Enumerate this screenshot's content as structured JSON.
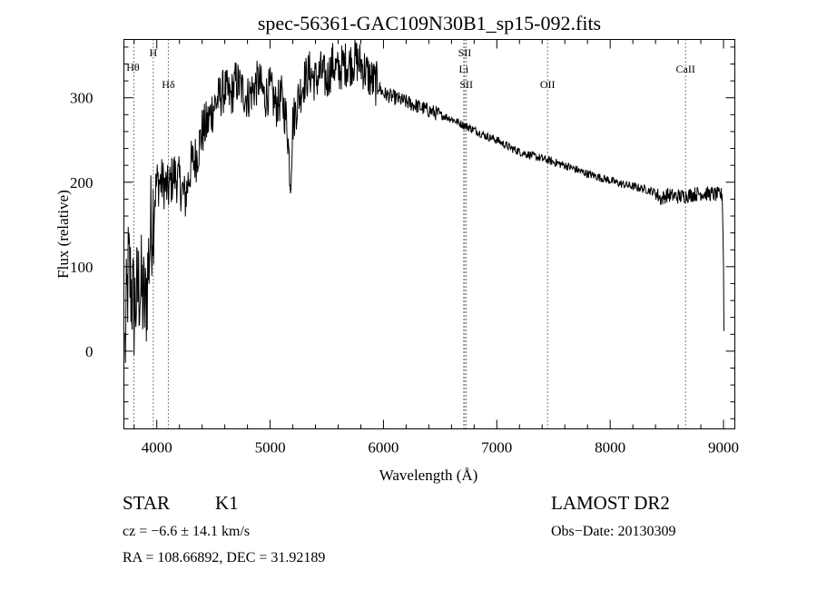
{
  "chart_data": {
    "type": "line",
    "title": "spec-56361-GAC109N30B1_sp15-092.fits",
    "xlabel": "Wavelength (Å)",
    "ylabel": "Flux (relative)",
    "xlim": [
      3710,
      9100
    ],
    "ylim": [
      -92,
      369
    ],
    "xticks": [
      4000,
      5000,
      6000,
      7000,
      8000,
      9000
    ],
    "yticks": [
      0,
      100,
      200,
      300
    ],
    "grid": false,
    "series": [
      {
        "name": "flux",
        "x": [
          3720,
          3750,
          3800,
          3850,
          3900,
          3950,
          4000,
          4050,
          4100,
          4150,
          4200,
          4250,
          4300,
          4350,
          4400,
          4450,
          4500,
          4550,
          4600,
          4650,
          4700,
          4750,
          4800,
          4850,
          4900,
          4950,
          5000,
          5050,
          5100,
          5150,
          5180,
          5200,
          5250,
          5300,
          5350,
          5400,
          5450,
          5500,
          5550,
          5600,
          5650,
          5700,
          5750,
          5800,
          5850,
          5900,
          5950,
          6000,
          6100,
          6200,
          6300,
          6400,
          6500,
          6600,
          6700,
          6800,
          6900,
          7000,
          7100,
          7200,
          7300,
          7400,
          7500,
          7600,
          7700,
          7800,
          7900,
          8000,
          8100,
          8200,
          8300,
          8400,
          8450,
          8500,
          8600,
          8700,
          8800,
          8900,
          8950,
          8990,
          9000,
          9005
        ],
        "y": [
          0,
          100,
          50,
          80,
          50,
          150,
          200,
          200,
          190,
          210,
          200,
          180,
          220,
          230,
          260,
          270,
          290,
          300,
          310,
          300,
          320,
          310,
          300,
          310,
          320,
          300,
          310,
          290,
          300,
          270,
          200,
          270,
          300,
          320,
          330,
          320,
          330,
          320,
          340,
          330,
          340,
          340,
          345,
          340,
          330,
          320,
          315,
          305,
          300,
          295,
          290,
          285,
          280,
          275,
          268,
          262,
          255,
          250,
          242,
          236,
          232,
          228,
          224,
          220,
          215,
          210,
          206,
          202,
          198,
          195,
          192,
          188,
          180,
          185,
          183,
          185,
          187,
          186,
          185,
          185,
          100,
          5
        ]
      }
    ],
    "line_markers": [
      {
        "label": "Hθ",
        "wavelength": 3798
      },
      {
        "label": "H",
        "wavelength": 3969
      },
      {
        "label": "Hδ",
        "wavelength": 4102
      },
      {
        "label": "SII",
        "wavelength": 6717
      },
      {
        "label": "Li",
        "wavelength": 6708
      },
      {
        "label": "SII",
        "wavelength": 6731
      },
      {
        "label": "OII",
        "wavelength": 7448
      },
      {
        "label": "CaII",
        "wavelength": 8665
      }
    ]
  },
  "info": {
    "class": "STAR",
    "subclass": "K1",
    "survey": "LAMOST DR2",
    "cz": "cz = −6.6 ± 14.1 km/s",
    "obs_date": "Obs−Date: 20130309",
    "coords": "RA = 108.66892, DEC =  31.92189"
  }
}
